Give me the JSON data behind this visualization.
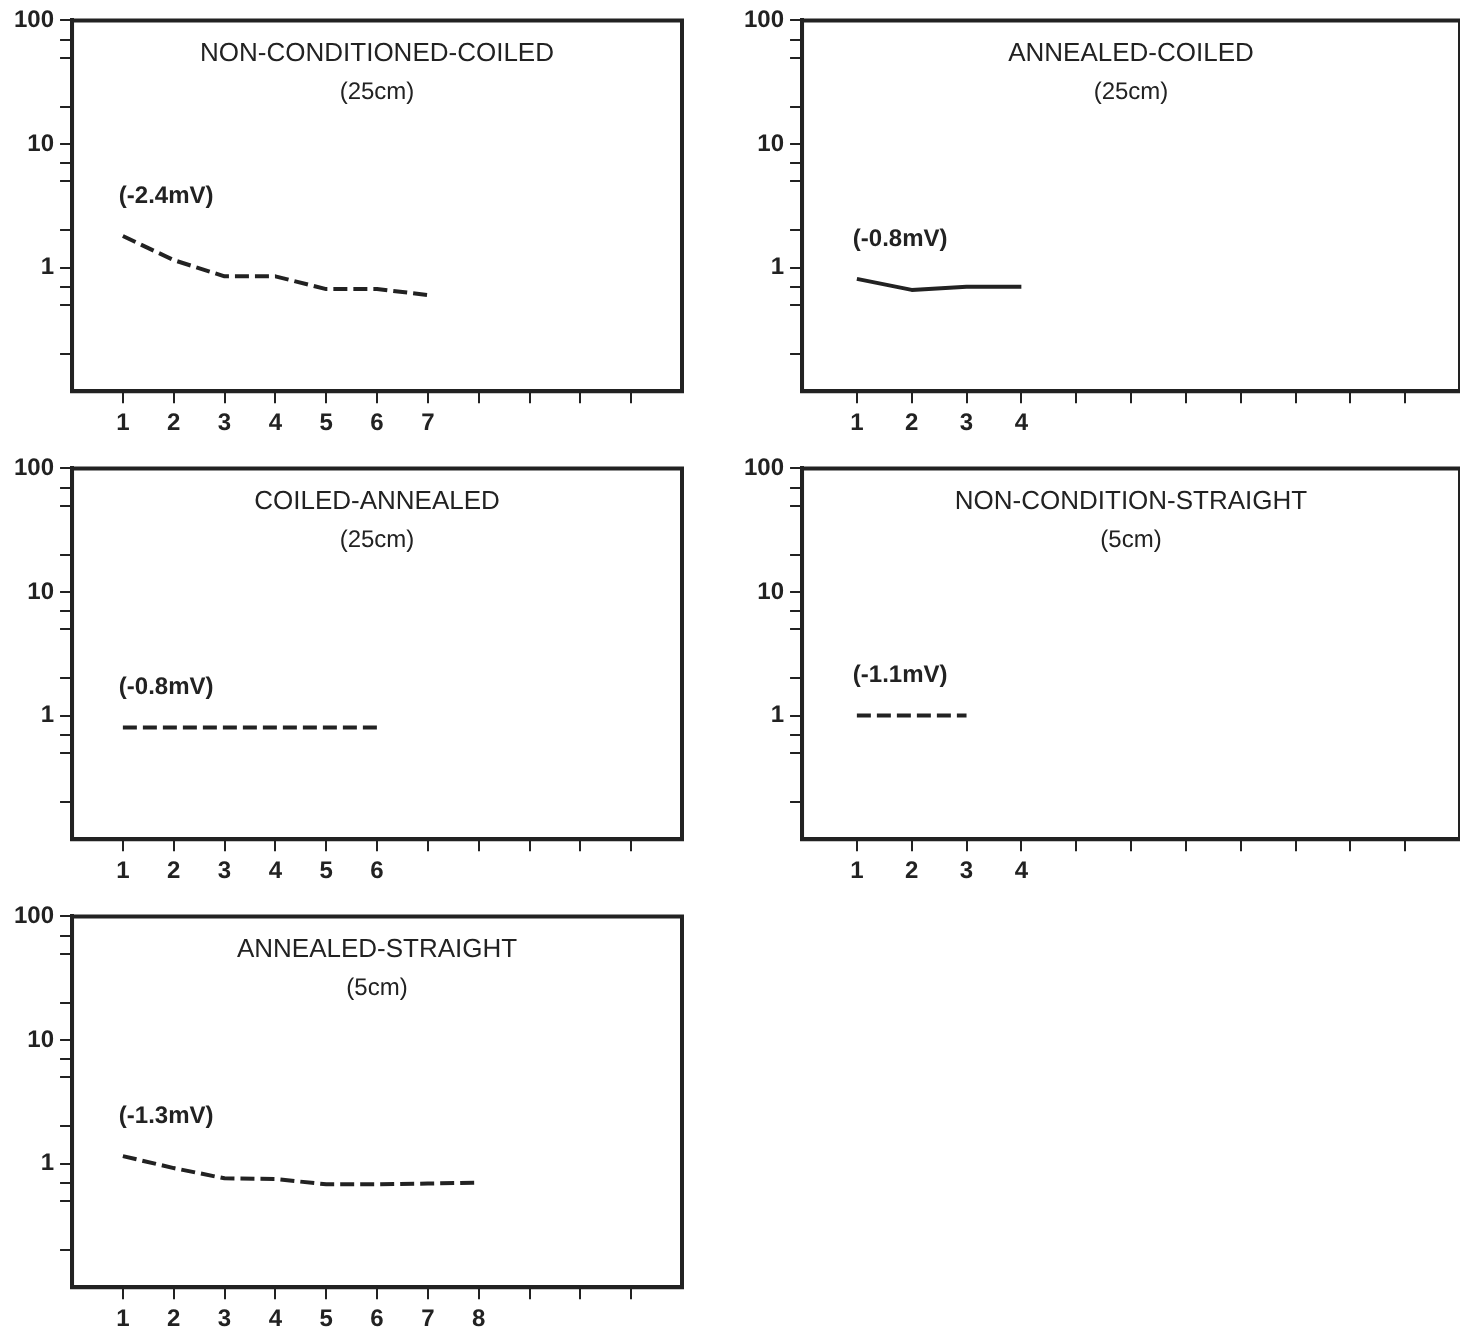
{
  "chart_data": [
    {
      "type": "line",
      "title": "NON-CONDITIONED-COILED",
      "subtitle": "(25cm)",
      "log": "y",
      "line_style": "dashed",
      "marker": "none",
      "grid": false,
      "legend": false,
      "xlim": [
        0,
        12
      ],
      "xticks": [
        1,
        2,
        3,
        4,
        5,
        6,
        7,
        {
          "value": 8,
          "label": null
        },
        {
          "value": 9,
          "label": null
        },
        {
          "value": 10,
          "label": null
        },
        {
          "value": 11,
          "label": null
        }
      ],
      "ylim": [
        0.1,
        100
      ],
      "yticks": [
        {
          "value": 0.2,
          "label": null
        },
        {
          "value": 0.5,
          "label": null
        },
        {
          "value": 0.7,
          "label": null
        },
        1,
        {
          "value": 2,
          "label": null
        },
        {
          "value": 5,
          "label": null
        },
        {
          "value": 7,
          "label": null
        },
        10,
        {
          "value": 20,
          "label": null
        },
        {
          "value": 50,
          "label": null
        },
        {
          "value": 70,
          "label": null
        },
        100
      ],
      "x": [
        1,
        2,
        3,
        4,
        5,
        6,
        7
      ],
      "series": [
        {
          "color": "#222222",
          "values": [
            1.8,
            1.15,
            0.85,
            0.85,
            0.67,
            0.67,
            0.6
          ]
        }
      ],
      "annotations": [
        "(-2.4mV)"
      ]
    },
    {
      "type": "line",
      "title": "ANNEALED-COILED",
      "subtitle": "(25cm)",
      "log": "y",
      "line_style": "solid",
      "marker": "none",
      "grid": false,
      "legend": false,
      "xlim": [
        0,
        12
      ],
      "xticks": [
        1,
        2,
        3,
        4,
        {
          "value": 5,
          "label": null
        },
        {
          "value": 6,
          "label": null
        },
        {
          "value": 7,
          "label": null
        },
        {
          "value": 8,
          "label": null
        },
        {
          "value": 9,
          "label": null
        },
        {
          "value": 10,
          "label": null
        },
        {
          "value": 11,
          "label": null
        }
      ],
      "ylim": [
        0.1,
        100
      ],
      "yticks": [
        {
          "value": 0.2,
          "label": null
        },
        {
          "value": 0.5,
          "label": null
        },
        {
          "value": 0.7,
          "label": null
        },
        1,
        {
          "value": 2,
          "label": null
        },
        {
          "value": 5,
          "label": null
        },
        {
          "value": 7,
          "label": null
        },
        10,
        {
          "value": 20,
          "label": null
        },
        {
          "value": 50,
          "label": null
        },
        {
          "value": 70,
          "label": null
        },
        100
      ],
      "x": [
        1,
        2,
        3,
        4
      ],
      "series": [
        {
          "color": "#222222",
          "values": [
            0.81,
            0.66,
            0.7,
            0.7
          ]
        }
      ],
      "annotations": [
        "(-0.8mV)"
      ]
    },
    {
      "type": "line",
      "title": "COILED-ANNEALED",
      "subtitle": "(25cm)",
      "log": "y",
      "line_style": "dashed",
      "marker": "none",
      "grid": false,
      "legend": false,
      "xlim": [
        0,
        12
      ],
      "xticks": [
        1,
        2,
        3,
        4,
        5,
        6,
        {
          "value": 7,
          "label": null
        },
        {
          "value": 8,
          "label": null
        },
        {
          "value": 9,
          "label": null
        },
        {
          "value": 10,
          "label": null
        },
        {
          "value": 11,
          "label": null
        }
      ],
      "ylim": [
        0.1,
        100
      ],
      "yticks": [
        {
          "value": 0.2,
          "label": null
        },
        {
          "value": 0.5,
          "label": null
        },
        {
          "value": 0.7,
          "label": null
        },
        1,
        {
          "value": 2,
          "label": null
        },
        {
          "value": 5,
          "label": null
        },
        {
          "value": 7,
          "label": null
        },
        10,
        {
          "value": 20,
          "label": null
        },
        {
          "value": 50,
          "label": null
        },
        {
          "value": 70,
          "label": null
        },
        100
      ],
      "x": [
        1,
        2,
        3,
        4,
        5,
        6
      ],
      "series": [
        {
          "color": "#222222",
          "values": [
            0.8,
            0.8,
            0.8,
            0.8,
            0.8,
            0.8
          ]
        }
      ],
      "annotations": [
        "(-0.8mV)"
      ]
    },
    {
      "type": "line",
      "title": "NON-CONDITION-STRAIGHT",
      "subtitle": "(5cm)",
      "log": "y",
      "line_style": "dashed",
      "marker": "none",
      "grid": false,
      "legend": false,
      "xlim": [
        0,
        12
      ],
      "xticks": [
        1,
        2,
        3,
        4,
        {
          "value": 5,
          "label": null
        },
        {
          "value": 6,
          "label": null
        },
        {
          "value": 7,
          "label": null
        },
        {
          "value": 8,
          "label": null
        },
        {
          "value": 9,
          "label": null
        },
        {
          "value": 10,
          "label": null
        },
        {
          "value": 11,
          "label": null
        }
      ],
      "ylim": [
        0.1,
        100
      ],
      "yticks": [
        {
          "value": 0.2,
          "label": null
        },
        {
          "value": 0.5,
          "label": null
        },
        {
          "value": 0.7,
          "label": null
        },
        1,
        {
          "value": 2,
          "label": null
        },
        {
          "value": 5,
          "label": null
        },
        {
          "value": 7,
          "label": null
        },
        10,
        {
          "value": 20,
          "label": null
        },
        {
          "value": 50,
          "label": null
        },
        {
          "value": 70,
          "label": null
        },
        100
      ],
      "x": [
        1,
        2,
        3
      ],
      "series": [
        {
          "color": "#222222",
          "values": [
            1.0,
            1.0,
            1.0
          ]
        }
      ],
      "annotations": [
        "(-1.1mV)"
      ]
    },
    {
      "type": "line",
      "title": "ANNEALED-STRAIGHT",
      "subtitle": "(5cm)",
      "log": "y",
      "line_style": "dashed",
      "marker": "none",
      "grid": false,
      "legend": false,
      "xlim": [
        0,
        12
      ],
      "xticks": [
        1,
        2,
        3,
        4,
        5,
        6,
        7,
        8,
        {
          "value": 9,
          "label": null
        },
        {
          "value": 10,
          "label": null
        },
        {
          "value": 11,
          "label": null
        }
      ],
      "ylim": [
        0.1,
        100
      ],
      "yticks": [
        {
          "value": 0.2,
          "label": null
        },
        {
          "value": 0.5,
          "label": null
        },
        {
          "value": 0.7,
          "label": null
        },
        1,
        {
          "value": 2,
          "label": null
        },
        {
          "value": 5,
          "label": null
        },
        {
          "value": 7,
          "label": null
        },
        10,
        {
          "value": 20,
          "label": null
        },
        {
          "value": 50,
          "label": null
        },
        {
          "value": 70,
          "label": null
        },
        100
      ],
      "x": [
        1,
        2,
        3,
        4,
        5,
        6,
        7,
        8
      ],
      "series": [
        {
          "color": "#222222",
          "values": [
            1.15,
            0.92,
            0.76,
            0.75,
            0.68,
            0.68,
            0.69,
            0.7
          ]
        }
      ],
      "annotations": [
        "(-1.3mV)"
      ]
    }
  ]
}
